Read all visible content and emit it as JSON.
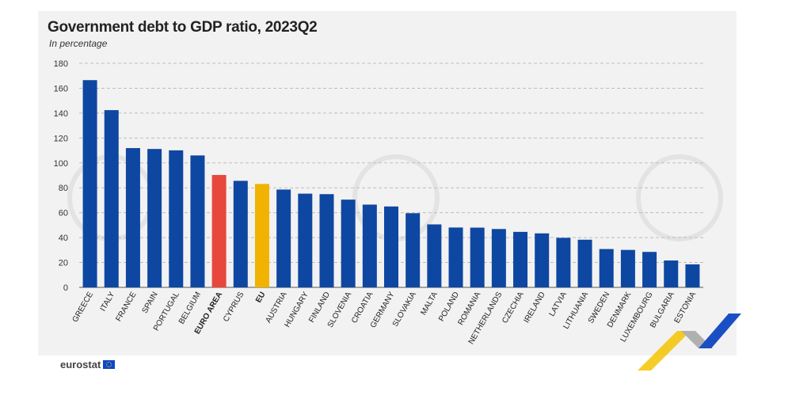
{
  "title": "Government debt to GDP ratio, 2023Q2",
  "subtitle": "In percentage",
  "logo_text": "eurostat",
  "colors": {
    "default": "#0e47a1",
    "euro_area": "#e8473c",
    "eu": "#f0b400",
    "grid": "#bdbdbd"
  },
  "chart_data": {
    "type": "bar",
    "title": "Government debt to GDP ratio, 2023Q2",
    "subtitle": "In percentage",
    "xlabel": "",
    "ylabel": "",
    "ylim": [
      0,
      180
    ],
    "yticks": [
      0,
      20,
      40,
      60,
      80,
      100,
      120,
      140,
      160,
      180
    ],
    "grid": true,
    "categories": [
      "GREECE",
      "ITALY",
      "FRANCE",
      "SPAIN",
      "PORTUGAL",
      "BELGIUM",
      "EURO AREA",
      "CYPRUS",
      "EU",
      "AUSTRIA",
      "HUNGARY",
      "FINLAND",
      "SLOVENIA",
      "CROATIA",
      "GERMANY",
      "SLOVAKIA",
      "MALTA",
      "POLAND",
      "ROMANIA",
      "NETHERLANDS",
      "CZECHIA",
      "IRELAND",
      "LATVIA",
      "LITHUANIA",
      "SWEDEN",
      "DENMARK",
      "LUXEMBOURG",
      "BULGARIA",
      "ESTONIA"
    ],
    "values": [
      166.5,
      142.4,
      111.9,
      111.2,
      110.1,
      106.0,
      90.3,
      85.6,
      83.1,
      78.6,
      75.3,
      74.9,
      70.5,
      66.5,
      65.0,
      59.6,
      50.6,
      48.1,
      48.0,
      46.9,
      44.6,
      43.4,
      39.8,
      38.3,
      30.8,
      30.1,
      28.5,
      21.6,
      18.5
    ],
    "highlight": {
      "EURO AREA": "euro_area",
      "EU": "eu"
    },
    "bold_labels": [
      "EURO AREA",
      "EU"
    ]
  }
}
